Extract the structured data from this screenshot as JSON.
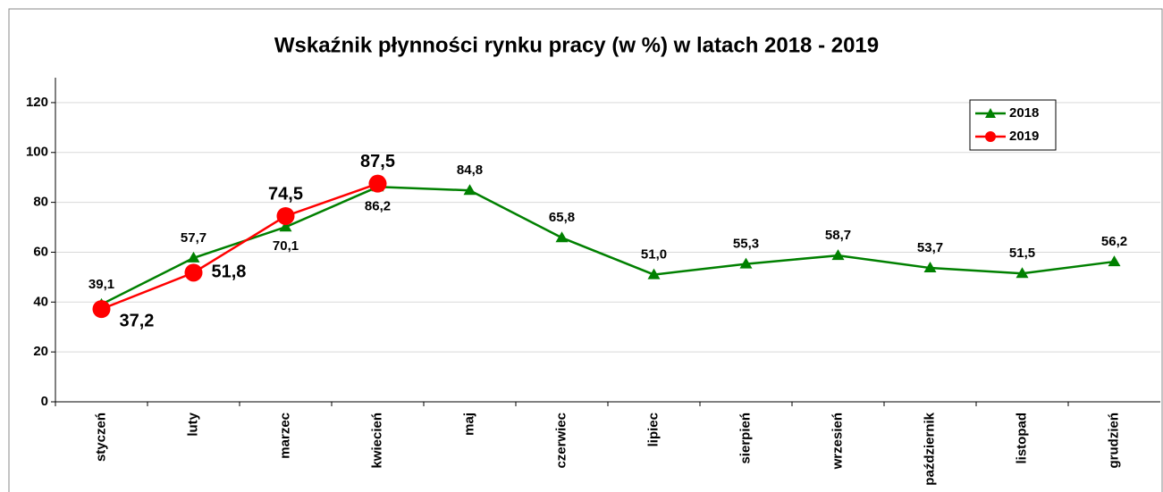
{
  "chart_data": {
    "type": "line",
    "title": "Wskaźnik płynności rynku pracy  (w %) w latach  2018  -  2019",
    "categories": [
      "styczeń",
      "luty",
      "marzec",
      "kwiecień",
      "maj",
      "czerwiec",
      "lipiec",
      "sierpień",
      "wrzesień",
      "październik",
      "listopad",
      "grudzień"
    ],
    "series": [
      {
        "name": "2018",
        "color": "#008000",
        "marker": "triangle",
        "values": [
          39.1,
          57.7,
          70.1,
          86.2,
          84.8,
          65.8,
          51.0,
          55.3,
          58.7,
          53.7,
          51.5,
          56.2
        ],
        "value_labels": [
          "39,1",
          "57,7",
          "70,1",
          "86,2",
          "84,8",
          "65,8",
          "51,0",
          "55,3",
          "58,7",
          "53,7",
          "51,5",
          "56,2"
        ]
      },
      {
        "name": "2019",
        "color": "#ff0000",
        "marker": "circle",
        "values": [
          37.2,
          51.8,
          74.5,
          87.5,
          null,
          null,
          null,
          null,
          null,
          null,
          null,
          null
        ],
        "value_labels": [
          "37,2",
          "51,8",
          "74,5",
          "87,5",
          null,
          null,
          null,
          null,
          null,
          null,
          null,
          null
        ]
      }
    ],
    "ylim": [
      0,
      130
    ],
    "yticks": [
      0,
      20,
      40,
      60,
      80,
      100,
      120
    ],
    "grid": true,
    "legend": "upper right"
  }
}
